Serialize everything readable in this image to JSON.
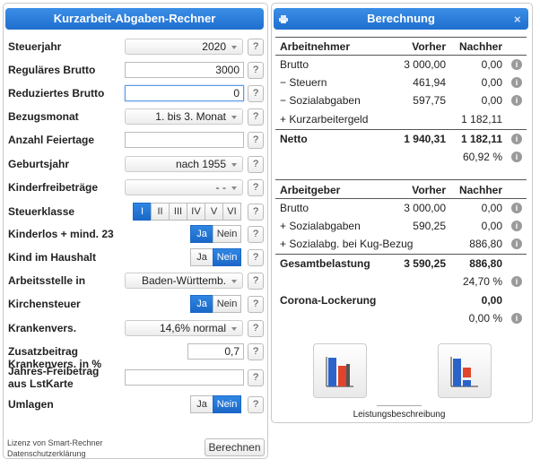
{
  "form": {
    "title": "Kurzarbeit-Abgaben-Rechner",
    "help": "?",
    "rows": [
      {
        "label": "Steuerjahr",
        "value": "2020"
      },
      {
        "label": "Reguläres Brutto",
        "value": "3000"
      },
      {
        "label": "Reduziertes Brutto",
        "value": "0"
      },
      {
        "label": "Bezugsmonat",
        "value": "1. bis 3. Monat"
      },
      {
        "label": "Anzahl Feiertage"
      },
      {
        "label": "Geburtsjahr",
        "value": "nach 1955"
      },
      {
        "label": "Kinderfreibeträge",
        "value": "- -"
      },
      {
        "label": "Steuerklasse",
        "options": [
          "I",
          "II",
          "III",
          "IV",
          "V",
          "VI"
        ],
        "selected": 0
      },
      {
        "label": "Kinderlos + mind. 23",
        "options": [
          "Ja",
          "Nein"
        ],
        "selected": 0
      },
      {
        "label": "Kind im Haushalt",
        "options": [
          "Ja",
          "Nein"
        ],
        "selected": 1
      },
      {
        "label": "Arbeitsstelle in",
        "value": "Baden-Württemb."
      },
      {
        "label": "Kirchensteuer",
        "options": [
          "Ja",
          "Nein"
        ],
        "selected": 0
      },
      {
        "label": "Krankenvers.",
        "value": "14,6% normal"
      },
      {
        "label": "Zusatzbeitrag Krankenvers. in %",
        "value": "0,7"
      },
      {
        "label": "Jahres-Freibetrag aus LstKarte"
      },
      {
        "label": "Umlagen",
        "options": [
          "Ja",
          "Nein"
        ],
        "selected": 1
      }
    ],
    "footer": {
      "license": "Lizenz von Smart-Rechner",
      "privacy": "Datenschutzerklärung",
      "button": "Berechnen"
    }
  },
  "result": {
    "title": "Berechnung",
    "close": "×",
    "info": "i",
    "sections": [
      {
        "header": [
          "Arbeitnehmer",
          "Vorher",
          "Nachher"
        ],
        "rows": [
          [
            "Brutto",
            "3 000,00",
            "0,00"
          ],
          [
            "− Steuern",
            "461,94",
            "0,00"
          ],
          [
            "− Sozialabgaben",
            "597,75",
            "0,00"
          ],
          [
            "+ Kurzarbeitergeld",
            null,
            "1 182,11"
          ],
          [
            "Netto",
            "1 940,31",
            "1 182,11"
          ],
          [
            null,
            null,
            "60,92 %"
          ]
        ]
      },
      {
        "header": [
          "Arbeitgeber",
          "Vorher",
          "Nachher"
        ],
        "rows": [
          [
            "Brutto",
            "3 000,00",
            "0,00"
          ],
          [
            "+ Sozialabgaben",
            "590,25",
            "0,00"
          ],
          [
            "+ Sozialabg. bei Kug-Bezug",
            null,
            "886,80"
          ],
          [
            "Gesamtbelastung",
            "3 590,25",
            "886,80"
          ],
          [
            null,
            null,
            "24,70 %"
          ],
          [
            "Corona-Lockerung",
            null,
            "0,00"
          ],
          [
            null,
            null,
            "0,00 %"
          ]
        ]
      }
    ],
    "footer": "Leistungsbeschreibung"
  }
}
